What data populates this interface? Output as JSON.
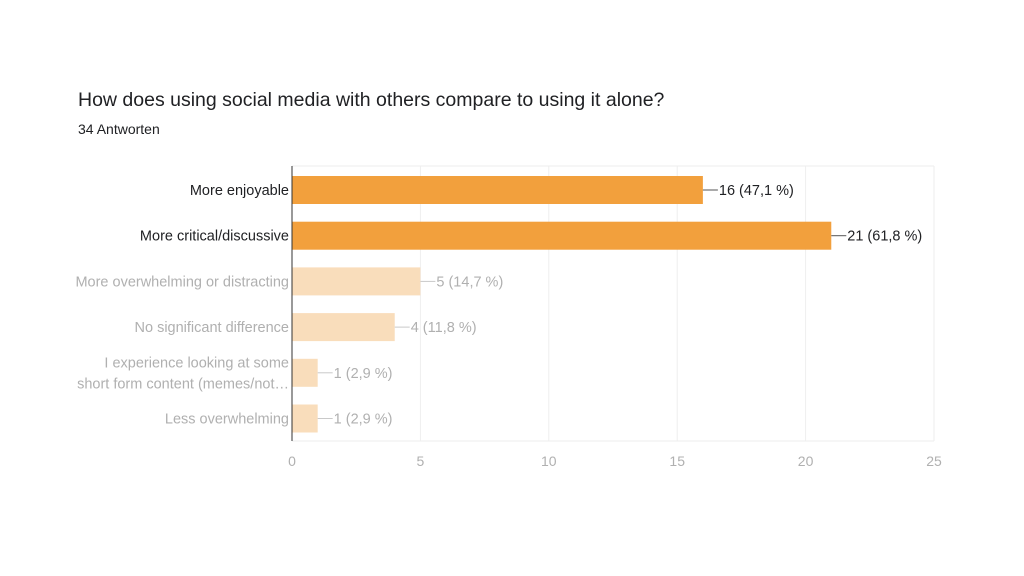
{
  "header": {
    "title": "How does using social media with others compare to using it alone?",
    "subtitle": "34 Antworten"
  },
  "colors": {
    "bar_strong": "#f2a03d",
    "bar_faded": "#f9ddbb",
    "label_strong": "#202124",
    "label_faded": "#b0b0b0",
    "grid": "#eeeeee"
  },
  "chart_data": {
    "type": "bar",
    "orientation": "horizontal",
    "title": "How does using social media with others compare to using it alone?",
    "subtitle": "34 Antworten",
    "categories": [
      "More enjoyable",
      "More critical/discussive",
      "More overwhelming or distracting",
      "No significant difference",
      "I experience looking at some short form content (memes/not…",
      "Less overwhelming"
    ],
    "category_lines": [
      [
        "More enjoyable"
      ],
      [
        "More critical/discussive"
      ],
      [
        "More overwhelming or distracting"
      ],
      [
        "No significant difference"
      ],
      [
        "I experience looking at some",
        "short form content (memes/not…"
      ],
      [
        "Less overwhelming"
      ]
    ],
    "values": [
      16,
      21,
      5,
      4,
      1,
      1
    ],
    "data_labels": [
      "16 (47,1 %)",
      "21 (61,8 %)",
      "5 (14,7 %)",
      "4 (11,8 %)",
      "1 (2,9 %)",
      "1 (2,9 %)"
    ],
    "highlighted": [
      true,
      true,
      false,
      false,
      false,
      false
    ],
    "xlim": [
      0,
      25
    ],
    "xticks": [
      0,
      5,
      10,
      15,
      20,
      25
    ],
    "xtick_labels": [
      "0",
      "5",
      "10",
      "15",
      "20",
      "25"
    ],
    "xlabel": "",
    "ylabel": "",
    "grid": true
  }
}
